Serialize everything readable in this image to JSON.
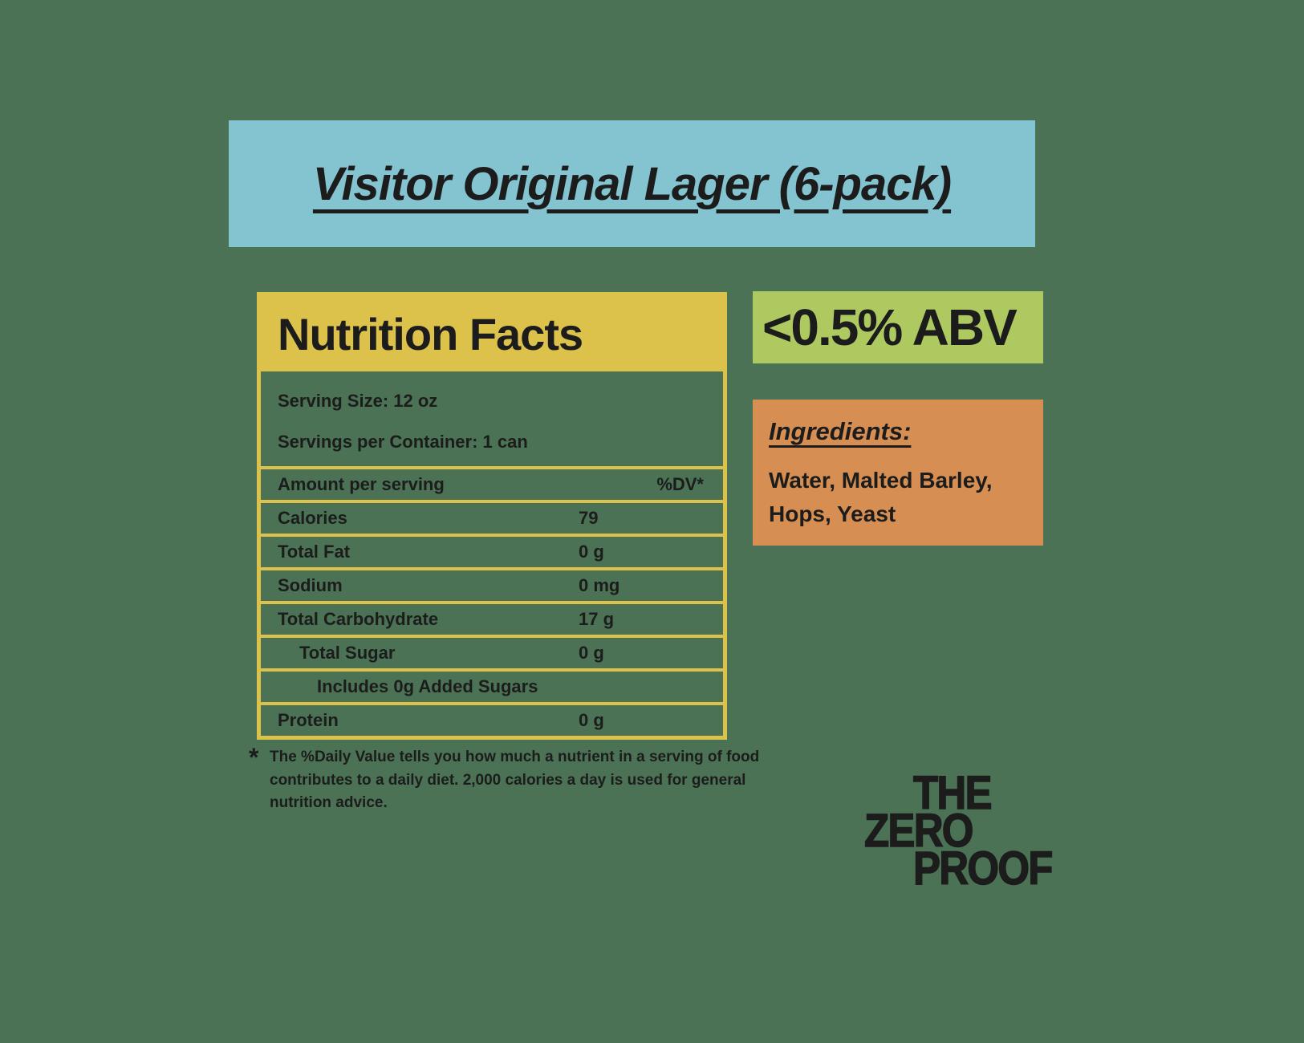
{
  "colors": {
    "background": "#4b7254",
    "banner_blue": "#84c4d0",
    "accent_yellow": "#dcc14b",
    "abv_green": "#adc960",
    "ingredients_orange": "#d78e52",
    "ink": "#1c1c1c"
  },
  "banner": {
    "title": "Visitor Original Lager (6-pack)"
  },
  "nutrition": {
    "title": "Nutrition Facts",
    "serving_size": "Serving Size: 12 oz",
    "servings_per_container": "Servings per Container: 1 can",
    "amount_header": {
      "label": "Amount per serving",
      "dv": "%DV*"
    },
    "rows": [
      {
        "label": "Calories",
        "value": "79",
        "indent": 0
      },
      {
        "label": "Total Fat",
        "value": "0 g",
        "indent": 0
      },
      {
        "label": "Sodium",
        "value": "0 mg",
        "indent": 0
      },
      {
        "label": "Total Carbohydrate",
        "value": "17 g",
        "indent": 0
      },
      {
        "label": "Total Sugar",
        "value": "0 g",
        "indent": 1
      },
      {
        "label": "Includes 0g Added Sugars",
        "value": "",
        "indent": 2
      },
      {
        "label": "Protein",
        "value": "0 g",
        "indent": 0
      }
    ]
  },
  "abv": {
    "text": "<0.5% ABV"
  },
  "ingredients": {
    "title": "Ingredients:",
    "items": "Water, Malted Barley, Hops, Yeast"
  },
  "footnote": {
    "asterisk": "*",
    "text": "The %Daily Value tells you how much a nutrient in a serving of food contributes to a daily diet. 2,000 calories a day is used for general nutrition advice."
  },
  "logo": {
    "line1": "THE",
    "line2": "ZERO",
    "line3": "PROOF"
  }
}
